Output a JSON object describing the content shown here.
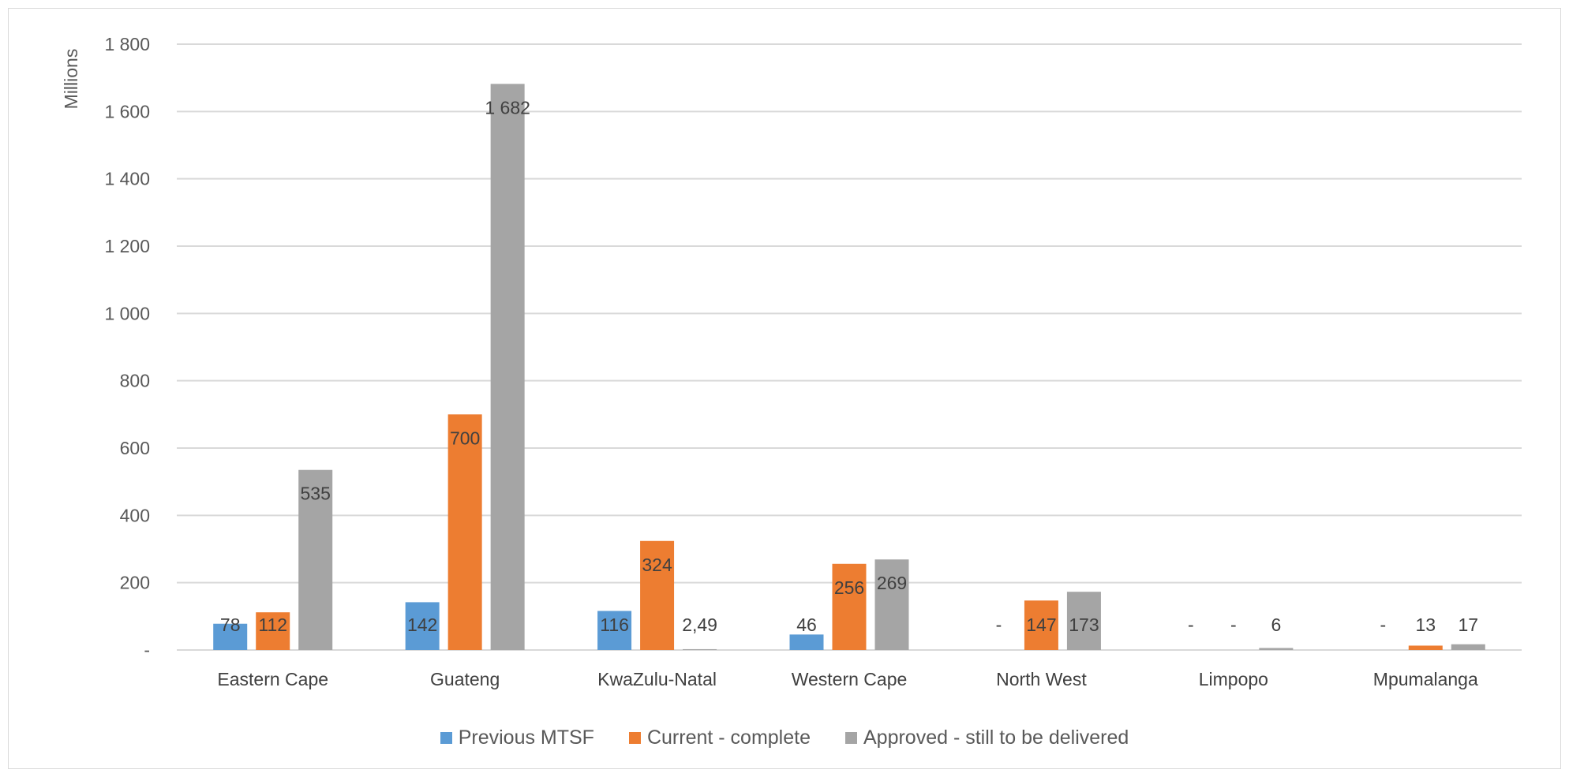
{
  "chart_data": {
    "type": "bar",
    "title": "",
    "xlabel": "",
    "ylabel": "Millions",
    "ylim": [
      0,
      1800
    ],
    "yticks": [
      0,
      200,
      400,
      600,
      800,
      1000,
      1200,
      1400,
      1600,
      1800
    ],
    "ytick_labels": [
      "-",
      "200",
      "400",
      "600",
      "800",
      "1 000",
      "1 200",
      "1 400",
      "1 600",
      "1 800"
    ],
    "grid": true,
    "legend_position": "bottom",
    "categories": [
      "Eastern Cape",
      "Guateng",
      "KwaZulu-Natal",
      "Western Cape",
      "North West",
      "Limpopo",
      "Mpumalanga"
    ],
    "series": [
      {
        "name": "Previous MTSF",
        "color": "#5B9BD5",
        "values": [
          78,
          142,
          116,
          46,
          0,
          0,
          0
        ],
        "labels": [
          "78",
          "142",
          "116",
          "46",
          "-",
          "-",
          "-"
        ]
      },
      {
        "name": "Current - complete",
        "color": "#ED7D31",
        "values": [
          112,
          700,
          324,
          256,
          147,
          0,
          13
        ],
        "labels": [
          "112",
          "700",
          "324",
          "256",
          "147",
          "-",
          "13"
        ]
      },
      {
        "name": "Approved - still to be delivered",
        "color": "#A5A5A5",
        "values": [
          535,
          1682,
          2.49,
          269,
          173,
          6,
          17
        ],
        "labels": [
          "535",
          "1 682",
          "2,49",
          "269",
          "173",
          "6",
          "17"
        ]
      }
    ]
  }
}
